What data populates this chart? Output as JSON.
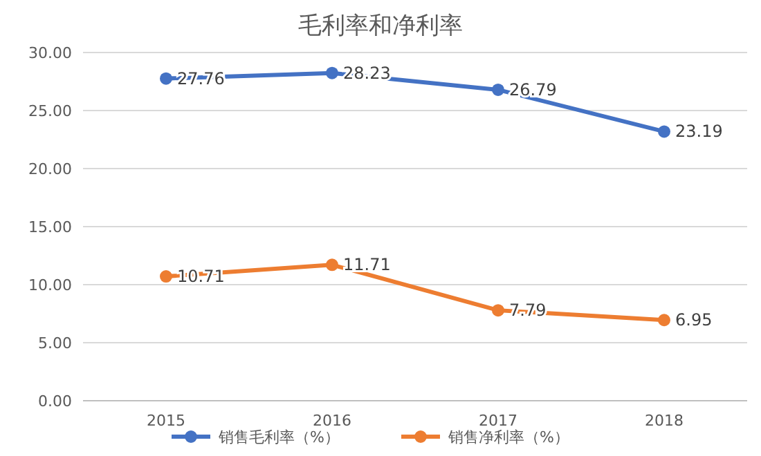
{
  "chart_data": {
    "type": "line",
    "title": "毛利率和净利率",
    "categories": [
      "2015",
      "2016",
      "2017",
      "2018"
    ],
    "series": [
      {
        "name": "销售毛利率（%）",
        "color": "#4472c4",
        "values": [
          27.76,
          28.23,
          26.79,
          23.19
        ]
      },
      {
        "name": "销售净利率（%）",
        "color": "#ed7d31",
        "values": [
          10.71,
          11.71,
          7.79,
          6.95
        ]
      }
    ],
    "ylim": [
      0,
      30
    ],
    "yticks": [
      {
        "value": 0,
        "label": "0.00"
      },
      {
        "value": 5,
        "label": "5.00"
      },
      {
        "value": 10,
        "label": "10.00"
      },
      {
        "value": 15,
        "label": "15.00"
      },
      {
        "value": 20,
        "label": "20.00"
      },
      {
        "value": 25,
        "label": "25.00"
      },
      {
        "value": 30,
        "label": "30.00"
      }
    ],
    "grid": "y",
    "legend": "bottom",
    "marker": "circle",
    "line_style": "solid",
    "data_labels": true
  }
}
